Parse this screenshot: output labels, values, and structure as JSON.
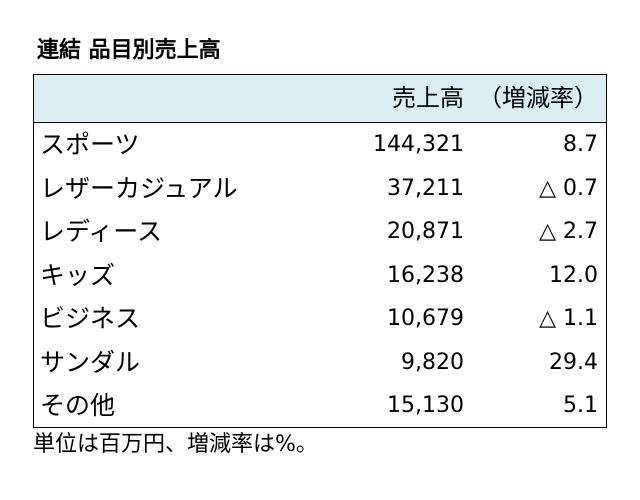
{
  "title": "連結 品目別売上高",
  "table": {
    "headers": {
      "sales": "売上高",
      "change": "（増減率）"
    },
    "rows": [
      {
        "item": "スポーツ",
        "sales": "144,321",
        "change": "8.7"
      },
      {
        "item": "レザーカジュアル",
        "sales": "37,211",
        "change": "△ 0.7"
      },
      {
        "item": "レディース",
        "sales": "20,871",
        "change": "△ 2.7"
      },
      {
        "item": "キッズ",
        "sales": "16,238",
        "change": "12.0"
      },
      {
        "item": "ビジネス",
        "sales": "10,679",
        "change": "△ 1.1"
      },
      {
        "item": "サンダル",
        "sales": "9,820",
        "change": "29.4"
      },
      {
        "item": "その他",
        "sales": "15,130",
        "change": "5.1"
      }
    ]
  },
  "footnote": "単位は百万円、増減率は%。",
  "colors": {
    "header_background": "#dbeef4",
    "border": "#000000"
  }
}
